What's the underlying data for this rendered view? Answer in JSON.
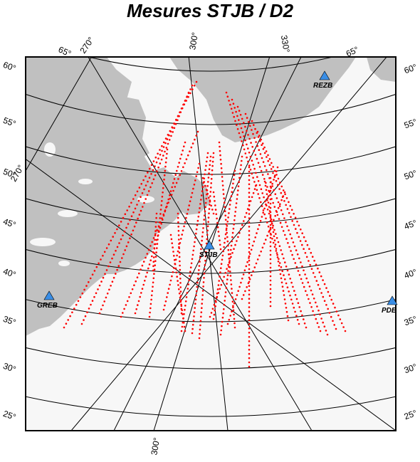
{
  "title": "Mesures STJB / D2",
  "colors": {
    "ocean": "#f7f7f7",
    "land": "#c0c0c0",
    "grid": "#000000",
    "track": "#ff0000",
    "station": "#3a8ee6"
  },
  "lon_labels": {
    "top": [
      "270°",
      "300°",
      "330°"
    ],
    "bottom": [
      "300°"
    ],
    "left_270": "270°"
  },
  "lat_labels": {
    "left": [
      "60°",
      "55°",
      "50°",
      "45°",
      "40°",
      "35°",
      "30°",
      "25°"
    ],
    "right": [
      "60°",
      "55°",
      "50°",
      "45°",
      "40°",
      "35°",
      "30°",
      "25°"
    ],
    "corner_left": "65°",
    "corner_right": "65°"
  },
  "stations": [
    {
      "name": "REZB",
      "icon": "triangle-icon"
    },
    {
      "name": "STJB",
      "icon": "triangle-icon"
    },
    {
      "name": "GREB",
      "icon": "triangle-icon"
    },
    {
      "name": "PDE",
      "icon": "triangle-icon"
    }
  ]
}
